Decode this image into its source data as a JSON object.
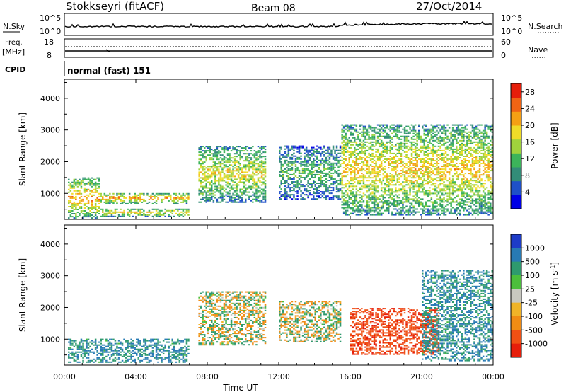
{
  "header": {
    "station": "Stokkseyri (fitACF)",
    "beam": "Beam 08",
    "date": "27/Oct/2014"
  },
  "summary_panels": {
    "nsky": {
      "left_label": "N.Sky",
      "left_ticks": [
        "10^5",
        "10^0"
      ],
      "right_ticks": [
        "10^5",
        "10^0"
      ],
      "right_label": "N.Search"
    },
    "freq": {
      "left_label_1": "Freq.",
      "left_label_2": "[MHz]",
      "left_ticks": [
        "18",
        "8"
      ],
      "right_ticks": [
        "60",
        "0"
      ],
      "right_label": "Nave"
    },
    "cpid": {
      "label": "CPID",
      "value": "normal (fast) 151"
    }
  },
  "colors": {
    "power_scale": [
      "#0000e6",
      "#1e50c8",
      "#328c78",
      "#3cb45a",
      "#a0d23c",
      "#f0dc28",
      "#f5a014",
      "#f06414",
      "#e61e0a"
    ],
    "velocity_scale": [
      "#1e3cc8",
      "#287ab4",
      "#2e9a6e",
      "#4cbe3c",
      "#c8c8c0",
      "#f0b428",
      "#f08c14",
      "#f05014",
      "#e61e0a"
    ]
  },
  "chart_data": [
    {
      "type": "heatmap",
      "title": "",
      "xlabel": "Time UT",
      "ylabel": "Slant Range [km]",
      "xlim": [
        "00:00",
        "24:00"
      ],
      "ylim": [
        180,
        4600
      ],
      "x_ticks": [
        "00:00",
        "04:00",
        "08:00",
        "12:00",
        "16:00",
        "20:00",
        "00:00"
      ],
      "y_ticks": [
        1000,
        2000,
        3000,
        4000
      ],
      "colorbar": {
        "label": "Power [dB]",
        "ticks": [
          4,
          8,
          12,
          16,
          20,
          24,
          28
        ],
        "range": [
          0,
          30
        ]
      },
      "regions": [
        {
          "t_start": 0.2,
          "t_end": 2.0,
          "range_min": 200,
          "range_max": 1500,
          "power": 22
        },
        {
          "t_start": 2.0,
          "t_end": 7.0,
          "range_min": 650,
          "range_max": 1000,
          "power": 22
        },
        {
          "t_start": 2.0,
          "t_end": 7.0,
          "range_min": 250,
          "range_max": 500,
          "power": 20
        },
        {
          "t_start": 7.5,
          "t_end": 11.3,
          "range_min": 700,
          "range_max": 2500,
          "power": 18
        },
        {
          "t_start": 12.0,
          "t_end": 15.5,
          "range_min": 800,
          "range_max": 2500,
          "power": 12
        },
        {
          "t_start": 15.5,
          "t_end": 24.0,
          "range_min": 300,
          "range_max": 3200,
          "power": 20
        }
      ]
    },
    {
      "type": "heatmap",
      "title": "",
      "xlabel": "Time UT",
      "ylabel": "Slant Range [km]",
      "xlim": [
        "00:00",
        "24:00"
      ],
      "ylim": [
        180,
        4600
      ],
      "x_ticks": [
        "00:00",
        "04:00",
        "08:00",
        "12:00",
        "16:00",
        "20:00",
        "00:00"
      ],
      "y_ticks": [
        1000,
        2000,
        3000,
        4000
      ],
      "colorbar": {
        "label": "Velocity [m s^-1]",
        "ticks": [
          "1000",
          "500",
          "100",
          "25",
          "-25",
          "-100",
          "-500",
          "-1000"
        ]
      },
      "regions": [
        {
          "t_start": 0.2,
          "t_end": 7.0,
          "range_min": 250,
          "range_max": 1000,
          "velocity": 300
        },
        {
          "t_start": 7.5,
          "t_end": 11.3,
          "range_min": 800,
          "range_max": 2500,
          "velocity": 0
        },
        {
          "t_start": 12.0,
          "t_end": 15.5,
          "range_min": 900,
          "range_max": 2200,
          "velocity": 0
        },
        {
          "t_start": 16.0,
          "t_end": 21.0,
          "range_min": 500,
          "range_max": 2000,
          "velocity": -600
        },
        {
          "t_start": 20.0,
          "t_end": 24.0,
          "range_min": 300,
          "range_max": 3200,
          "velocity": 300
        }
      ]
    }
  ]
}
